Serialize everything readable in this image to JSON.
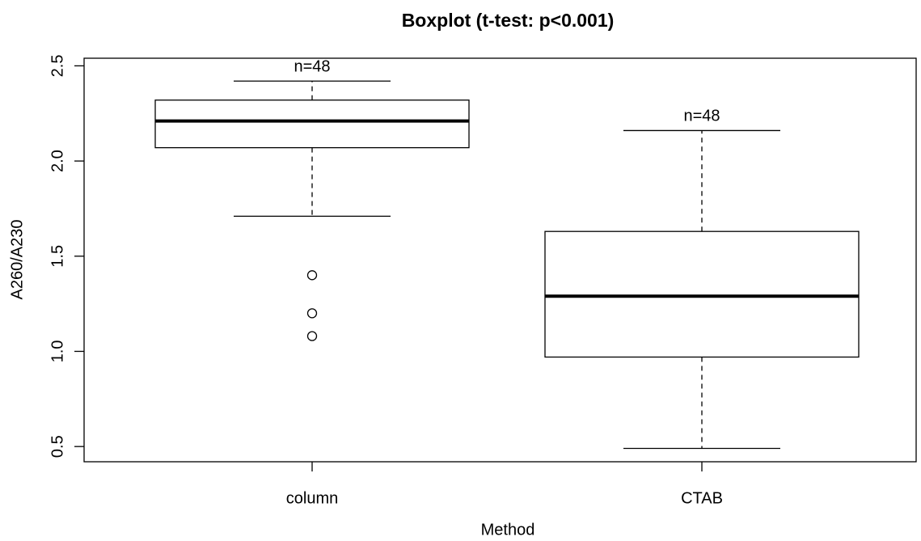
{
  "chart_data": {
    "type": "box",
    "title": "Boxplot (t-test: p<0.001)",
    "x_label": "Method",
    "y_label": "A260/A230",
    "categories": [
      "column",
      "CTAB"
    ],
    "boxes": [
      {
        "whislo": 1.71,
        "q1": 2.07,
        "median": 2.21,
        "q3": 2.32,
        "whishi": 2.42,
        "outliers": [
          1.4,
          1.2,
          1.08
        ],
        "annotation": "n=48"
      },
      {
        "whislo": 0.49,
        "q1": 0.97,
        "median": 1.29,
        "q3": 1.63,
        "whishi": 2.16,
        "outliers": [],
        "annotation": "n=48"
      }
    ],
    "ylim": [
      0.42,
      2.54
    ],
    "yticks": [
      {
        "value": 0.5,
        "label": "0.5"
      },
      {
        "value": 1.0,
        "label": "1.0"
      },
      {
        "value": 1.5,
        "label": "1.5"
      },
      {
        "value": 2.0,
        "label": "2.0"
      },
      {
        "value": 2.5,
        "label": "2.5"
      }
    ],
    "color": "#000000"
  }
}
